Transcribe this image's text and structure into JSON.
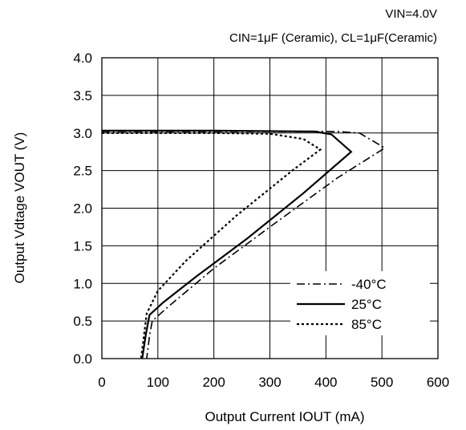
{
  "chart_data": {
    "type": "line",
    "conditions": {
      "line1": "VIN=4.0V",
      "line2": "CIN=1μF (Ceramic), CL=1μF(Ceramic)"
    },
    "xlabel": "Output Current IOUT (mA)",
    "ylabel": "Output Vdtage VOUT (V)",
    "xlim": [
      0,
      600
    ],
    "ylim": [
      0,
      4.0
    ],
    "xticks": [
      "0",
      "100",
      "200",
      "300",
      "400",
      "500",
      "600"
    ],
    "yticks": [
      "0.0",
      "0.5",
      "1.0",
      "1.5",
      "2.0",
      "2.5",
      "3.0",
      "3.5",
      "4.0"
    ],
    "grid": true,
    "legend_position": "bottom-right",
    "series": [
      {
        "name": "-40°C",
        "style": "dashdot",
        "points": [
          [
            0,
            3.02
          ],
          [
            250,
            3.02
          ],
          [
            420,
            3.02
          ],
          [
            460,
            3.0
          ],
          [
            505,
            2.8
          ],
          [
            420,
            2.4
          ],
          [
            300,
            1.75
          ],
          [
            200,
            1.2
          ],
          [
            120,
            0.7
          ],
          [
            90,
            0.5
          ],
          [
            85,
            0.3
          ],
          [
            80,
            0.0
          ]
        ]
      },
      {
        "name": "25°C",
        "style": "solid",
        "points": [
          [
            0,
            3.03
          ],
          [
            200,
            3.03
          ],
          [
            380,
            3.02
          ],
          [
            410,
            2.98
          ],
          [
            445,
            2.75
          ],
          [
            360,
            2.2
          ],
          [
            260,
            1.6
          ],
          [
            170,
            1.1
          ],
          [
            110,
            0.75
          ],
          [
            85,
            0.58
          ],
          [
            78,
            0.3
          ],
          [
            72,
            0.0
          ]
        ]
      },
      {
        "name": "85°C",
        "style": "dotted",
        "points": [
          [
            0,
            3.0
          ],
          [
            200,
            3.0
          ],
          [
            300,
            2.99
          ],
          [
            360,
            2.92
          ],
          [
            390,
            2.78
          ],
          [
            340,
            2.5
          ],
          [
            240,
            1.9
          ],
          [
            150,
            1.3
          ],
          [
            100,
            0.9
          ],
          [
            80,
            0.6
          ],
          [
            75,
            0.3
          ],
          [
            70,
            0.0
          ]
        ]
      }
    ]
  }
}
